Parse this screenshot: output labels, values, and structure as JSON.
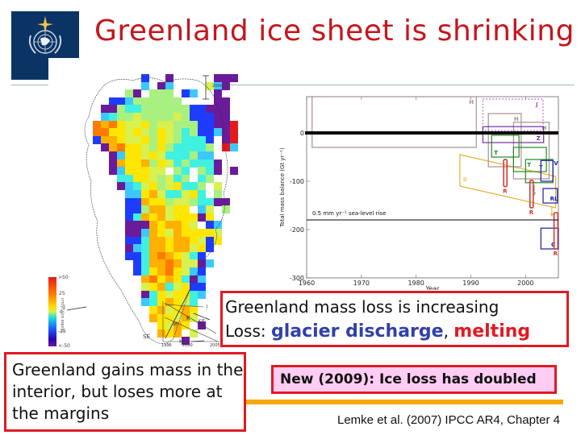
{
  "slide": {
    "title": "Greenland ice sheet is shrinking",
    "logo": {
      "icon": "wmo-emblem-icon",
      "bg_color": "#0b3464"
    },
    "title_color": "#c4161c"
  },
  "callouts": {
    "mass_loss": {
      "line1": "Greenland mass loss is increasing",
      "line2_prefix": "Loss: ",
      "line2_blue": "glacier discharge",
      "line2_sep": ", ",
      "line2_red": "melting",
      "border_color": "#e01a22"
    },
    "interior": {
      "text": "Greenland gains mass in the interior, but loses more at the margins"
    },
    "new_finding": {
      "text": "New (2009):  Ice loss has doubled",
      "bg_color": "#ffccf3"
    },
    "citation": "Lemke et al. (2007) IPCC AR4, Chapter 4"
  },
  "map": {
    "scale_label": "200km",
    "colorbar": {
      "ticks": [
        ">50",
        "25",
        "0",
        "-25",
        "<-50"
      ],
      "label": "cm/yr (ice equiv)"
    },
    "annotations": [
      "J",
      "K",
      "H",
      "SE"
    ],
    "inset": {
      "x_ticks": [
        "1996",
        "2000",
        "2005"
      ],
      "labels": [
        "J",
        "K/F",
        "SE"
      ]
    },
    "palette": {
      "P": "#6a1b9a",
      "B": "#1e3cff",
      "C": "#3cc8ff",
      "A": "#40f0e0",
      "G": "#a8f080",
      "L": "#d8f050",
      "Y": "#ffe600",
      "O": "#ffb000",
      "R": "#ff7a00",
      "D": "#e31a1c",
      ".": null
    },
    "grid": [
      "..........B..P.....PPP",
      "..........C.PC....LCP.",
      "........GP.GGG.BC..P..",
      "......BBCGGGGGG....PP.",
      ".....PPGAAGGGGGGBBPPP.",
      ".....CAGGLGGGGLGBBBPP.",
      "....RORYLLYGLLGGGBBPPD",
      "....RRYYLYLGYLGAGBBCPD",
      "....BOOYLLYGYLGAAAB.PD",
      ".....PORYYLGYGAAAAG.DC",
      "......PCYYLYLAAAGCC...",
      "......POYYOGYLAGAAAP..",
      "......PCYYYLL.GA.GAP.P",
      ".......AAYYLGLAG.AG...",
      ".......PCALYGLYAAG.L..",
      "........CCYOLAALYA.G..",
      "........BBOYYGLLGAAPP.",
      "........BBGOOLYY.CL.G.",
      "........BAOYOLYYYPY...",
      "........PPPOYOOYL.BC..",
      "........PPCOYLOYYYYL..",
      "........BBAOOYOOYLBY..",
      "........PCAOOYOOLYB...",
      "........BBAOROYLAB....",
      ".........BAOOROLLPC...",
      ".........BAYORYLCB....",
      "..........ORYOYAPC....",
      "..........LYOALYBB....",
      "..........PAYLYYAC....",
      "..........CAYOYLA.....",
      "...........YOLYOY.....",
      "...........OYYLOL.....",
      "............YLOY.P....",
      "............OYO.L.....",
      "...............P......"
    ]
  },
  "chart_data": {
    "type": "range-box",
    "title": "",
    "xlabel": "Year",
    "ylabel": "Total mass balance (Gt yr⁻¹)",
    "xlim": [
      1960,
      2006
    ],
    "ylim": [
      -300,
      75
    ],
    "x_ticks": [
      "1960",
      "1970",
      "1980",
      "1990",
      "2000"
    ],
    "y_ticks": [
      "0",
      "-100",
      "-200",
      "-300"
    ],
    "reference_lines": [
      {
        "y": 0,
        "style": "thick",
        "label": ""
      },
      {
        "y": -180,
        "style": "thin",
        "label": "0.5 mm yr⁻¹ sea-level rise"
      }
    ],
    "estimates": [
      {
        "label": "H",
        "color": "#a89090",
        "x0": 1961,
        "x1": 1991,
        "y0": -30,
        "y1": 75
      },
      {
        "label": "J",
        "color": "#c040c0",
        "x0": 1992.2,
        "x1": 2003.2,
        "y0": 5,
        "y1": 70,
        "dotted": true
      },
      {
        "label": "H",
        "color": "#a89090",
        "x0": 1993.2,
        "x1": 1999.2,
        "y0": -70,
        "y1": 40
      },
      {
        "label": "H",
        "color": "#a89090",
        "x0": 1997.8,
        "x1": 2004.3,
        "y0": -95,
        "y1": 22
      },
      {
        "label": "Z",
        "color": "#7030a0",
        "x0": 1992.2,
        "x1": 2003.3,
        "y0": -20,
        "y1": 13
      },
      {
        "label": "T",
        "color": "#208a20",
        "x0": 1993.8,
        "x1": 1998.8,
        "y0": -50,
        "y1": -5
      },
      {
        "label": "T",
        "color": "#208a20",
        "x0": 1997.8,
        "x1": 2003.8,
        "y0": -80,
        "y1": -30
      },
      {
        "label": "T",
        "color": "#208a20",
        "x0": 2000,
        "x1": 2005,
        "y0": -103,
        "y1": -55
      },
      {
        "label": "V",
        "color": "#1a1aa0",
        "x0": 2002.8,
        "x1": 2005,
        "y0": -100,
        "y1": -57
      },
      {
        "label": "R",
        "color": "#d03030",
        "x0": 1996,
        "x1": 1996.6,
        "y0": -111,
        "y1": -55,
        "bar": true
      },
      {
        "label": "R",
        "color": "#d03030",
        "x0": 2000.8,
        "x1": 2001.4,
        "y0": -155,
        "y1": -98,
        "bar": true
      },
      {
        "label": "RL",
        "color": "#1a1aa0",
        "x0": 2003.2,
        "x1": 2005.8,
        "y0": -145,
        "y1": -115
      },
      {
        "label": "C",
        "color": "#1a1aa0",
        "x0": 2002.8,
        "x1": 2006,
        "y0": -240,
        "y1": -197
      },
      {
        "label": "R",
        "color": "#d03030",
        "x0": 2005.2,
        "x1": 2005.9,
        "y0": -240,
        "y1": -165,
        "bar": true
      }
    ],
    "trend_band": {
      "label": "B",
      "color": "#e8b030",
      "points": [
        [
          1988,
          -45
        ],
        [
          2005.5,
          -90
        ],
        [
          2005.5,
          -155
        ],
        [
          1988,
          -110
        ]
      ]
    }
  }
}
